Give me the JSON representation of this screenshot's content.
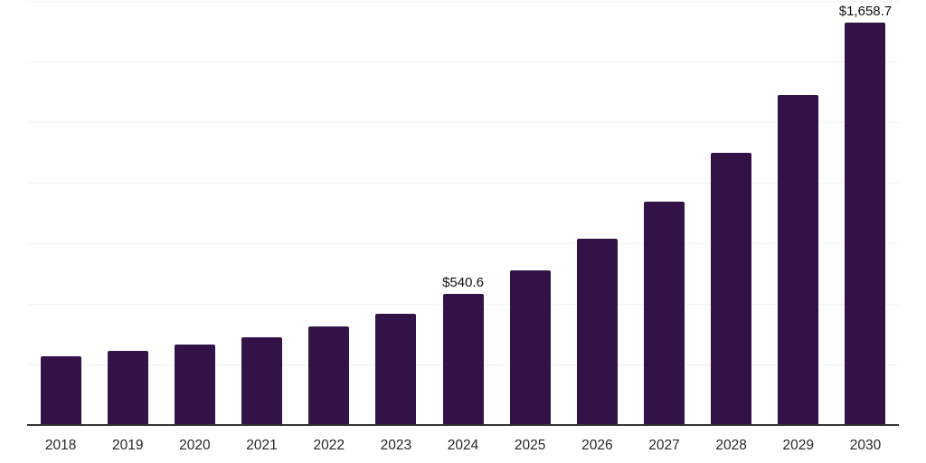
{
  "chart_data": {
    "type": "bar",
    "title": "",
    "xlabel": "",
    "ylabel": "",
    "categories": [
      "2018",
      "2019",
      "2020",
      "2021",
      "2022",
      "2023",
      "2024",
      "2025",
      "2026",
      "2027",
      "2028",
      "2029",
      "2030"
    ],
    "values": [
      283,
      306,
      332,
      362,
      408,
      460,
      540.6,
      639,
      768,
      921,
      1123,
      1361,
      1658.7
    ],
    "data_labels": {
      "2024": "$540.6",
      "2030": "$1,658.7"
    },
    "ylim": [
      0,
      1750
    ],
    "ytick_step": 250,
    "y_axis_labels_visible": false,
    "grid": "horizontal",
    "legend": "none",
    "colors": {
      "bar": "#331247",
      "gridline": "#f3f3f3",
      "axis_line": "#333333",
      "value_label_text": "#111111",
      "x_tick_text": "#262626",
      "background": "#ffffff"
    }
  }
}
